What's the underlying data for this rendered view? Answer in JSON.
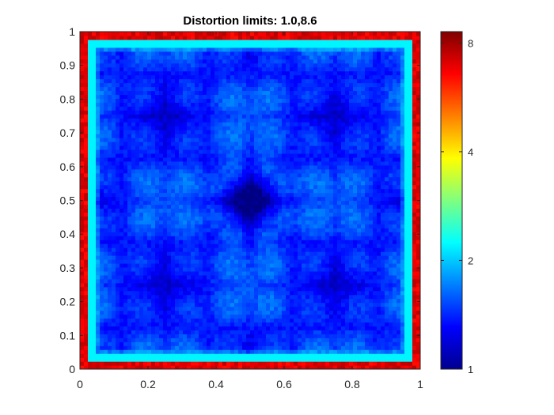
{
  "chart_data": {
    "type": "heatmap",
    "title": "Distortion limits: 1.0,8.6",
    "xlabel": "",
    "ylabel": "",
    "xlim": [
      0,
      1
    ],
    "ylim": [
      0,
      1
    ],
    "x_ticks": [
      0,
      0.2,
      0.4,
      0.6,
      0.8,
      1
    ],
    "x_tick_labels": [
      "0",
      "0.2",
      "0.4",
      "0.6",
      "0.8",
      "1"
    ],
    "y_ticks": [
      0,
      0.1,
      0.2,
      0.3,
      0.4,
      0.5,
      0.6,
      0.7,
      0.8,
      0.9,
      1
    ],
    "y_tick_labels": [
      "0",
      "0.1",
      "0.2",
      "0.3",
      "0.4",
      "0.5",
      "0.6",
      "0.7",
      "0.8",
      "0.9",
      "1"
    ],
    "colormap": "jet",
    "color_scale": "log",
    "clim": [
      1,
      8.6
    ],
    "colorbar_ticks": [
      1,
      2,
      4,
      8
    ],
    "colorbar_tick_labels": [
      "1",
      "2",
      "4",
      "8"
    ],
    "colorbar_position": "right",
    "grid": false,
    "regions": [
      {
        "name": "boundary band",
        "x": [
          0,
          1
        ],
        "y": [
          0,
          1
        ],
        "band_width": 0.035,
        "value": 7.0
      },
      {
        "name": "inner edge ring",
        "value": 2.2
      },
      {
        "name": "interior",
        "x": [
          0.035,
          0.965
        ],
        "y": [
          0.035,
          0.965
        ],
        "value_range": [
          1.0,
          1.8
        ],
        "typical_value": 1.35,
        "center_minimum": {
          "x": 0.5,
          "y": 0.5,
          "value": 1.0
        }
      }
    ]
  }
}
